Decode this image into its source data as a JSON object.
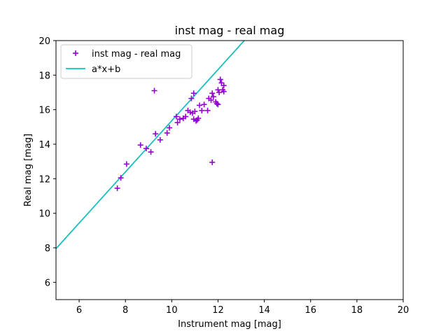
{
  "chart_data": {
    "type": "scatter",
    "title": "inst mag - real mag",
    "xlabel": "Instrument mag [mag]",
    "ylabel": "Real mag [mag]",
    "xlim": [
      5,
      20
    ],
    "ylim": [
      5,
      20
    ],
    "xticks": [
      6,
      8,
      10,
      12,
      14,
      16,
      18,
      20
    ],
    "yticks": [
      6,
      8,
      10,
      12,
      14,
      16,
      18,
      20
    ],
    "grid": false,
    "legend_position": "top-left",
    "colors": {
      "scatter": "#9400d3",
      "fit": "#17bfbf"
    },
    "series": [
      {
        "name": "inst mag - real mag",
        "kind": "scatter",
        "marker": "plus",
        "points": [
          [
            7.65,
            11.45
          ],
          [
            7.8,
            12.05
          ],
          [
            8.05,
            12.85
          ],
          [
            8.65,
            13.95
          ],
          [
            8.9,
            13.75
          ],
          [
            9.1,
            13.55
          ],
          [
            9.3,
            14.6
          ],
          [
            9.5,
            14.25
          ],
          [
            9.25,
            17.1
          ],
          [
            9.8,
            14.65
          ],
          [
            9.9,
            14.95
          ],
          [
            10.2,
            15.6
          ],
          [
            10.25,
            15.25
          ],
          [
            10.35,
            15.45
          ],
          [
            10.5,
            15.5
          ],
          [
            10.6,
            15.6
          ],
          [
            10.7,
            15.95
          ],
          [
            10.8,
            15.85
          ],
          [
            10.85,
            16.65
          ],
          [
            10.9,
            15.8
          ],
          [
            10.95,
            16.95
          ],
          [
            10.95,
            15.45
          ],
          [
            11.0,
            15.9
          ],
          [
            11.05,
            15.35
          ],
          [
            11.1,
            15.4
          ],
          [
            11.15,
            15.5
          ],
          [
            11.2,
            16.25
          ],
          [
            11.3,
            15.95
          ],
          [
            11.4,
            16.3
          ],
          [
            11.55,
            15.95
          ],
          [
            11.6,
            16.65
          ],
          [
            11.7,
            16.55
          ],
          [
            11.75,
            16.95
          ],
          [
            11.8,
            16.75
          ],
          [
            11.9,
            16.45
          ],
          [
            11.95,
            16.35
          ],
          [
            12.0,
            16.3
          ],
          [
            12.0,
            17.15
          ],
          [
            12.05,
            17.0
          ],
          [
            12.1,
            17.75
          ],
          [
            12.15,
            17.55
          ],
          [
            12.2,
            17.15
          ],
          [
            12.25,
            17.4
          ],
          [
            12.25,
            17.05
          ],
          [
            11.75,
            12.95
          ]
        ]
      },
      {
        "name": "a*x+b",
        "kind": "line",
        "points": [
          [
            5.0,
            7.95
          ],
          [
            13.2,
            20.1
          ]
        ]
      }
    ]
  }
}
